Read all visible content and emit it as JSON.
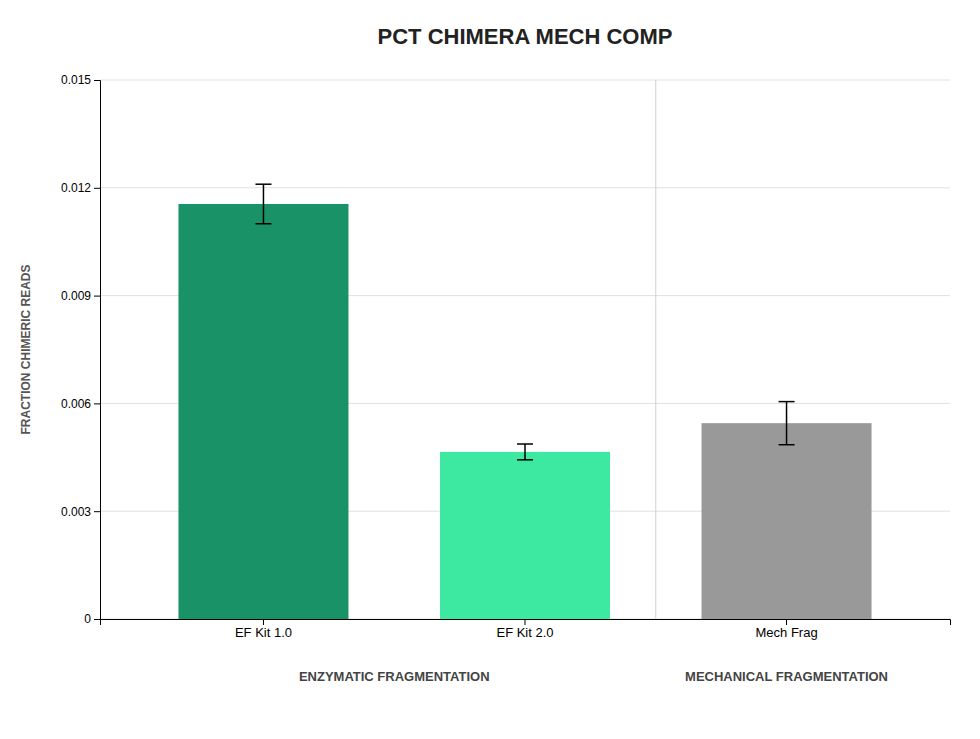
{
  "chart_data": {
    "type": "bar",
    "title": "PCT CHIMERA MECH COMP",
    "y_label": "FRACTION CHIMERIC READS",
    "categories": [
      "EF Kit 1.0",
      "EF Kit 2.0",
      "Mech Frag"
    ],
    "values": [
      0.01155,
      0.00465,
      0.00545
    ],
    "errors": [
      0.00055,
      0.00022,
      0.0006
    ],
    "colors": [
      "#1a9268",
      "#3de8a0",
      "#999999"
    ],
    "annotations": [
      {
        "text": "ENZYMATIC FRAGMENTATION",
        "categories": [
          "EF Kit 1.0",
          "EF Kit 2.0"
        ]
      },
      {
        "text": "MECHANICAL FRAGMENTATION",
        "categories": [
          "Mech Frag"
        ]
      }
    ],
    "ylim": [
      0,
      0.015
    ],
    "yticks": [
      0,
      0.003,
      0.006,
      0.009,
      0.012,
      0.015
    ],
    "grid": true
  }
}
